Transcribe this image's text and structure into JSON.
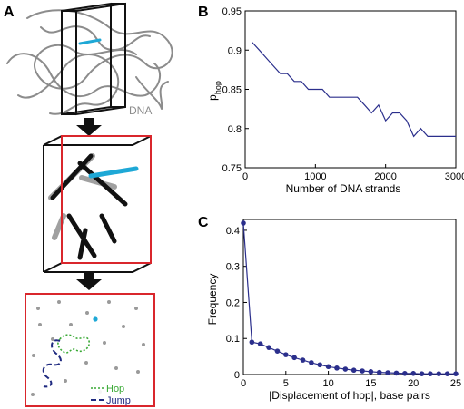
{
  "panels": {
    "a": "A",
    "b": "B",
    "c": "C"
  },
  "dna_label": "DNA",
  "legend": {
    "hop": "Hop",
    "jump": "Jump"
  },
  "colors": {
    "dna": "#8c8c8c",
    "highlight": "#1ea8d6",
    "frame_red": "#d9262c",
    "hop": "#39a935",
    "jump": "#1f2a80",
    "line": "#2b2f8c",
    "marker": "#2b2f8c"
  },
  "chart_data": [
    {
      "type": "line",
      "panel": "B",
      "xlabel": "Number of DNA strands",
      "ylabel": "p",
      "ylabel_sub": "hop",
      "xlim": [
        0,
        3000
      ],
      "ylim": [
        0.75,
        0.95
      ],
      "xticks": [
        "0",
        "1000",
        "2000",
        "3000"
      ],
      "yticks": [
        "0.75",
        "0.8",
        "0.85",
        "0.9",
        "0.95"
      ],
      "x": [
        100,
        200,
        300,
        400,
        500,
        600,
        700,
        800,
        900,
        1000,
        1100,
        1200,
        1300,
        1400,
        1500,
        1600,
        1700,
        1800,
        1900,
        2000,
        2100,
        2200,
        2300,
        2400,
        2500,
        2600,
        2700,
        2800,
        2900,
        3000
      ],
      "y": [
        0.91,
        0.9,
        0.89,
        0.88,
        0.87,
        0.87,
        0.86,
        0.86,
        0.85,
        0.85,
        0.85,
        0.84,
        0.84,
        0.84,
        0.84,
        0.84,
        0.83,
        0.82,
        0.83,
        0.81,
        0.82,
        0.82,
        0.81,
        0.79,
        0.8,
        0.79,
        0.79,
        0.79,
        0.79,
        0.79
      ]
    },
    {
      "type": "line",
      "panel": "C",
      "xlabel": "|Displacement of hop|, base pairs",
      "ylabel": "Frequency",
      "xlim": [
        0,
        25
      ],
      "ylim": [
        0,
        0.43
      ],
      "xticks": [
        "0",
        "5",
        "10",
        "15",
        "20",
        "25"
      ],
      "yticks": [
        "0",
        "0.1",
        "0.2",
        "0.3",
        "0.4"
      ],
      "x": [
        0,
        1,
        2,
        3,
        4,
        5,
        6,
        7,
        8,
        9,
        10,
        11,
        12,
        13,
        14,
        15,
        16,
        17,
        18,
        19,
        20,
        21,
        22,
        23,
        24,
        25
      ],
      "y": [
        0.42,
        0.09,
        0.085,
        0.075,
        0.065,
        0.055,
        0.047,
        0.04,
        0.033,
        0.027,
        0.022,
        0.018,
        0.015,
        0.012,
        0.01,
        0.008,
        0.006,
        0.005,
        0.004,
        0.003,
        0.003,
        0.002,
        0.002,
        0.002,
        0.002,
        0.002
      ]
    }
  ]
}
